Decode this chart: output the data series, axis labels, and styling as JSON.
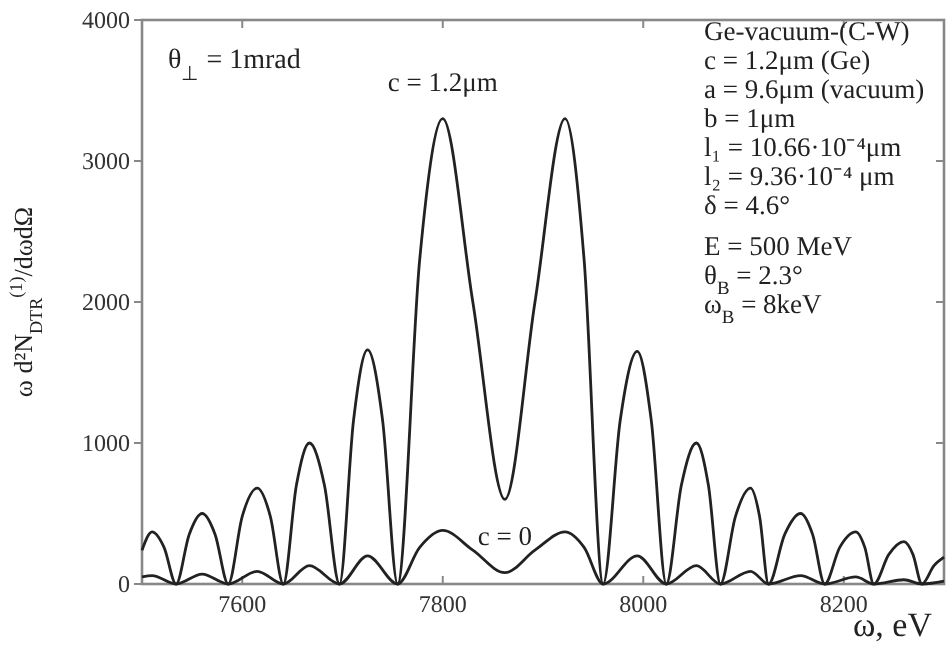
{
  "chart_data": {
    "type": "line",
    "xlabel": "ω, eV",
    "ylabel": "ω d²N$_{DTR}$$^{(1)}$/dωdΩ",
    "xlim": [
      7500,
      8300
    ],
    "xticks": [
      7600,
      7800,
      8000,
      8200
    ],
    "ylim": [
      0,
      4000
    ],
    "yticks": [
      0,
      1000,
      2000,
      3000,
      4000
    ],
    "grid": false,
    "marker": "none",
    "line_style": "solid",
    "series": [
      {
        "color": "#222222",
        "x": [
          7500,
          7510,
          7522,
          7534,
          7547,
          7560,
          7573,
          7586,
          7600,
          7615,
          7628,
          7641,
          7654,
          7667,
          7682,
          7697,
          7711,
          7725,
          7740,
          7755,
          7777,
          7800,
          7830,
          7862,
          7892,
          7922,
          7941,
          7960,
          7977,
          7994,
          8008,
          8023,
          8038,
          8053,
          8065,
          8077,
          8092,
          8107,
          8116,
          8125,
          8141,
          8157,
          8169,
          8181,
          8196,
          8212,
          8221,
          8230,
          8245,
          8260,
          8269,
          8278,
          8290,
          8300
        ],
        "values": [
          240,
          370,
          260,
          0,
          350,
          500,
          350,
          0,
          480,
          680,
          480,
          0,
          700,
          1000,
          700,
          0,
          1160,
          1660,
          1160,
          0,
          2300,
          3300,
          2000,
          600,
          2000,
          3300,
          2300,
          0,
          1160,
          1650,
          1160,
          0,
          700,
          1000,
          700,
          0,
          480,
          680,
          480,
          0,
          350,
          500,
          350,
          0,
          260,
          370,
          260,
          0,
          210,
          300,
          210,
          0,
          130,
          190
        ]
      },
      {
        "color": "#222222",
        "x": [
          7500,
          7510,
          7534,
          7560,
          7586,
          7615,
          7641,
          7667,
          7697,
          7725,
          7755,
          7777,
          7800,
          7830,
          7862,
          7892,
          7922,
          7941,
          7960,
          7994,
          8023,
          8053,
          8077,
          8107,
          8125,
          8157,
          8181,
          8212,
          8230,
          8260,
          8278,
          8300
        ],
        "values": [
          50,
          60,
          0,
          70,
          0,
          90,
          0,
          130,
          0,
          200,
          0,
          260,
          380,
          240,
          80,
          240,
          370,
          260,
          0,
          200,
          0,
          130,
          0,
          90,
          0,
          60,
          0,
          50,
          0,
          30,
          0,
          20
        ]
      }
    ],
    "annotations": [
      {
        "text": "c = 1.2μm",
        "x": 7800,
        "y": 3300
      },
      {
        "text": "c = 0",
        "x": 7862,
        "y": 75
      },
      "θ$_{⊥}$ = 1mrad",
      "Ge-vacuum-(C-W)",
      "c = 1.2μm  (Ge)",
      "a = 9.6μm (vacuum)",
      "b = 1μm",
      "l₁ = 10.66·10⁻⁴μm",
      "l₂ = 9.36·10⁻⁴ μm",
      "δ = 4.6°",
      "E = 500 MeV",
      "θ$_{B}$ = 2.3°",
      "ω$_{B}$ = 8keV"
    ]
  }
}
